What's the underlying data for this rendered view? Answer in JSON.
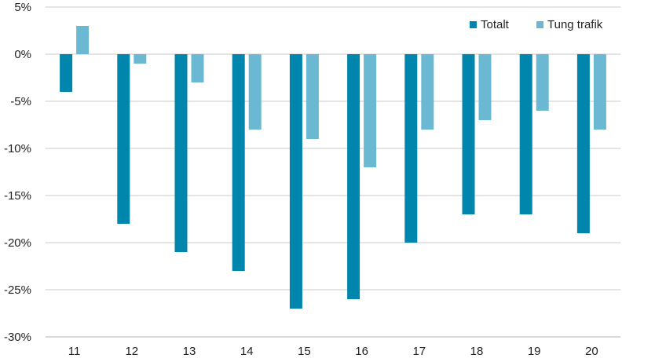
{
  "chart_data": {
    "type": "bar",
    "title": "",
    "xlabel": "",
    "ylabel": "",
    "categories": [
      "11",
      "12",
      "13",
      "14",
      "15",
      "16",
      "17",
      "18",
      "19",
      "20"
    ],
    "series": [
      {
        "name": "Totalt",
        "color": "#0085AD",
        "values": [
          -4,
          -18,
          -21,
          -23,
          -27,
          -26,
          -20,
          -17,
          -17,
          -19
        ]
      },
      {
        "name": "Tung trafik",
        "color": "#6BB8D2",
        "values": [
          3,
          -1,
          -3,
          -8,
          -9,
          -12,
          -8,
          -7,
          -6,
          -8
        ]
      }
    ],
    "ylim": [
      -30,
      5
    ],
    "yticks": [
      5,
      0,
      -5,
      -10,
      -15,
      -20,
      -25,
      -30
    ],
    "ytick_labels": [
      "5%",
      "0%",
      "-5%",
      "-10%",
      "-15%",
      "-20%",
      "-25%",
      "-30%"
    ],
    "grid": true,
    "legend_position": "top-right"
  }
}
